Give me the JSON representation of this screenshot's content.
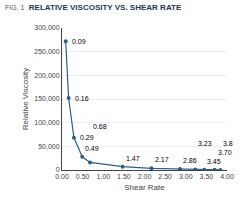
{
  "chart_data": {
    "type": "line",
    "subtitle": "FIG. 1",
    "title": "RELATIVE VISCOSITY VS. SHEAR RATE",
    "xlabel": "Shear Rate",
    "ylabel": "Relative Viscosity",
    "x": [
      0.09,
      0.16,
      0.29,
      0.49,
      0.68,
      1.47,
      2.17,
      2.86,
      3.23,
      3.45,
      3.7,
      3.84
    ],
    "values": [
      272000,
      152000,
      68000,
      28000,
      16000,
      7000,
      3500,
      2000,
      800,
      500,
      300,
      200
    ],
    "color": "#2b5f8a",
    "marker": "circle",
    "grid": true,
    "xlim": [
      0.0,
      4.0
    ],
    "ylim": [
      0,
      300000
    ],
    "xticks": [
      {
        "value": 0.0,
        "label": "0.00"
      },
      {
        "value": 0.5,
        "label": "0.50"
      },
      {
        "value": 1.0,
        "label": "1.00"
      },
      {
        "value": 1.5,
        "label": "1.50"
      },
      {
        "value": 2.0,
        "label": "2.00"
      },
      {
        "value": 2.5,
        "label": "2.50"
      },
      {
        "value": 3.0,
        "label": "3.00"
      },
      {
        "value": 3.5,
        "label": "3.50"
      },
      {
        "value": 4.0,
        "label": "4.00"
      }
    ],
    "yticks": [
      0,
      {
        "value": 50000,
        "label": "50,000"
      },
      {
        "value": 100000,
        "label": "100,000"
      },
      {
        "value": 150000,
        "label": "150,000"
      },
      {
        "value": 200000,
        "label": "200,000"
      },
      {
        "value": 250000,
        "label": "250,000"
      },
      {
        "value": 300000,
        "label": "300,000"
      }
    ],
    "annotations": [
      {
        "x": 0.09,
        "y": 272000,
        "text": "0.09"
      },
      {
        "x": 0.16,
        "y": 152000,
        "text": "0.16"
      },
      {
        "x": 0.29,
        "y": 68000,
        "text": "0.29"
      },
      {
        "x": 0.49,
        "y": 28000,
        "text": "0.49"
      },
      {
        "x": 0.68,
        "y": 16000,
        "text": "0.68"
      },
      {
        "x": 1.47,
        "y": 7000,
        "text": "1.47"
      },
      {
        "x": 2.17,
        "y": 3500,
        "text": "2.17"
      },
      {
        "x": 2.86,
        "y": 2000,
        "text": "2.86"
      },
      {
        "x": 3.23,
        "y": 800,
        "text": "3.23"
      },
      {
        "x": 3.45,
        "y": 500,
        "text": "3.45"
      },
      {
        "x": 3.7,
        "y": 300,
        "text": "3.70"
      },
      {
        "x": 3.84,
        "y": 200,
        "text": "3.8"
      }
    ]
  }
}
